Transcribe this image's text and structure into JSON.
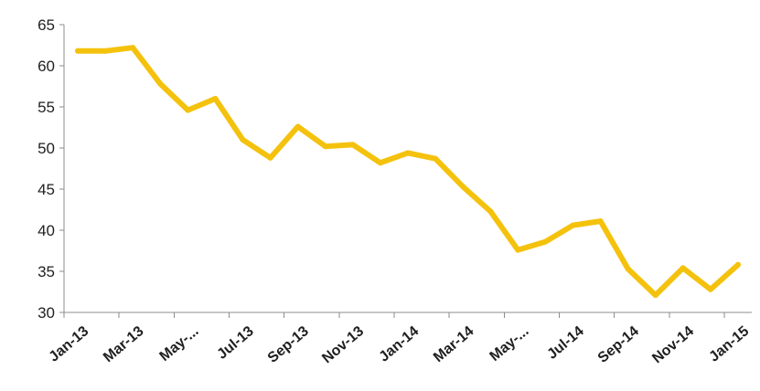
{
  "chart_data": {
    "type": "line",
    "title": "",
    "xlabel": "",
    "ylabel": "",
    "ylim": [
      30,
      65
    ],
    "y_ticks": [
      30,
      35,
      40,
      45,
      50,
      55,
      60,
      65
    ],
    "y_tick_labels": [
      "30",
      "35",
      "40",
      "45",
      "50",
      "55",
      "60",
      "65"
    ],
    "x_tick_labels": [
      "Jan-13",
      "Mar-13",
      "May-...",
      "Jul-13",
      "Sep-13",
      "Nov-13",
      "Jan-14",
      "Mar-14",
      "May-...",
      "Jul-14",
      "Sep-14",
      "Nov-14",
      "Jan-15"
    ],
    "grid": false,
    "legend": "none",
    "categories": [
      "Jan-13",
      "Feb-13",
      "Mar-13",
      "Apr-13",
      "May-13",
      "Jun-13",
      "Jul-13",
      "Aug-13",
      "Sep-13",
      "Oct-13",
      "Nov-13",
      "Dec-13",
      "Jan-14",
      "Feb-14",
      "Mar-14",
      "Apr-14",
      "May-14",
      "Jun-14",
      "Jul-14",
      "Aug-14",
      "Sep-14",
      "Oct-14",
      "Nov-14",
      "Dec-14",
      "Jan-15"
    ],
    "series": [
      {
        "color": "#F4C20D",
        "values": [
          61.8,
          61.8,
          62.2,
          57.8,
          54.6,
          56.0,
          51.0,
          48.8,
          52.6,
          50.2,
          50.4,
          48.2,
          49.4,
          48.7,
          45.3,
          42.3,
          37.6,
          38.6,
          40.6,
          41.1,
          35.3,
          32.1,
          35.4,
          32.8,
          35.8
        ]
      }
    ]
  }
}
